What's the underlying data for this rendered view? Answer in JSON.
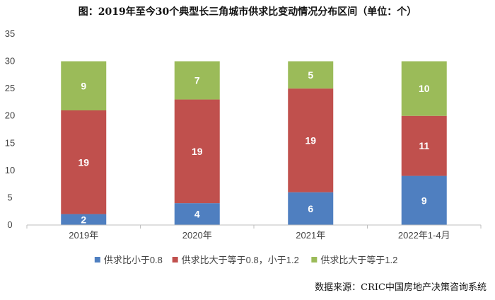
{
  "header": {
    "title": "图：2019年至今30个典型长三角城市供求比变动情况分布区间（单位：个）"
  },
  "footer": {
    "source": "数据来源：CRIC中国房地产决策咨询系统"
  },
  "colors": {
    "series_low": "#4f7fc0",
    "series_mid": "#c0504d",
    "series_high": "#9bbb59",
    "axis": "#bfbfbf",
    "grid": "#d9d9d9"
  },
  "chart_data": {
    "type": "bar",
    "stacked": true,
    "categories": [
      "2019年",
      "2020年",
      "2021年",
      "2022年1-4月"
    ],
    "series": [
      {
        "name": "供求比小于0.8",
        "values": [
          2,
          4,
          6,
          9
        ],
        "color": "#4f7fc0"
      },
      {
        "name": "供求比大于等于0.8，小于1.2",
        "values": [
          19,
          19,
          19,
          11
        ],
        "color": "#c0504d"
      },
      {
        "name": "供求比大于等于1.2",
        "values": [
          9,
          7,
          5,
          10
        ],
        "color": "#9bbb59"
      }
    ],
    "ylim": [
      0,
      35
    ],
    "yticks": [
      0,
      5,
      10,
      15,
      20,
      25,
      30,
      35
    ],
    "xlabel": "",
    "ylabel": "",
    "grid": false,
    "legend": "bottom"
  }
}
